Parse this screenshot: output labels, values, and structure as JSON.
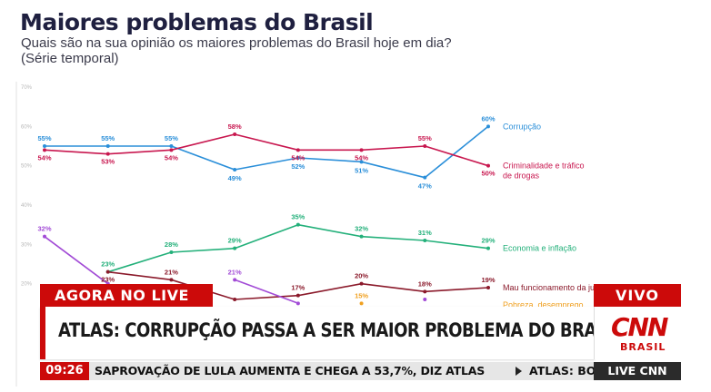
{
  "chart_data": {
    "type": "line",
    "title": "Maiores problemas do Brasil",
    "subtitle": "Quais são na sua opinião os maiores problemas do Brasil hoje em dia?",
    "subtitle2": "(Série temporal)",
    "y_ticks": [
      "70%",
      "60%",
      "50%",
      "40%",
      "30%",
      "20%"
    ],
    "ylim": [
      10,
      70
    ],
    "grid": false,
    "n_points": 8,
    "series": [
      {
        "name": "Corrupção",
        "color": "#2b8fd9",
        "values": [
          55,
          55,
          55,
          49,
          52,
          51,
          47,
          60
        ],
        "labels": [
          "55%",
          "55%",
          "55%",
          "49%",
          "52%",
          "51%",
          "47%",
          "60%"
        ]
      },
      {
        "name": "Criminalidade e tráfico de drogas",
        "name_lines": [
          "Criminalidade e tráfico",
          "de drogas"
        ],
        "color": "#c8174f",
        "values": [
          54,
          53,
          54,
          58,
          54,
          54,
          55,
          50
        ],
        "labels": [
          "54%",
          "53%",
          "54%",
          "58%",
          "54%",
          "54%",
          "55%",
          "50%"
        ]
      },
      {
        "name": "Economia e inflação",
        "color": "#23b07a",
        "values": [
          null,
          23,
          28,
          29,
          35,
          32,
          31,
          29
        ],
        "labels": [
          "",
          "23%",
          "28%",
          "29%",
          "35%",
          "32%",
          "31%",
          "29%"
        ]
      },
      {
        "name": "Mau funcionamento da ju",
        "color": "#8b1a2b",
        "values": [
          null,
          23,
          21,
          16,
          17,
          20,
          18,
          19
        ],
        "labels": [
          "",
          "23%",
          "21%",
          "",
          "17%",
          "20%",
          "18%",
          "19%"
        ]
      },
      {
        "name": "Pobreza, desemprego",
        "color": "#f0a020",
        "values": [
          null,
          null,
          null,
          null,
          null,
          15,
          null,
          null
        ],
        "labels": [
          "",
          "",
          "",
          "",
          "",
          "15%",
          "",
          ""
        ]
      },
      {
        "name": "",
        "color": "#a24bd6",
        "values": [
          32,
          20,
          null,
          21,
          15,
          null,
          16,
          null
        ],
        "labels": [
          "32%",
          "",
          "",
          "21%",
          "",
          "",
          "",
          ""
        ]
      }
    ]
  },
  "overlay": {
    "agora": "AGORA NO LIVE",
    "vivo": "VIVO",
    "headline": "ATLAS: CORRUPÇÃO PASSA A SER MAIOR PROBLEMA DO BRASIL",
    "logo_main": "CNN",
    "logo_sub": "BRASIL",
    "clock": "09:26",
    "ticker": "SAPROVAÇÃO DE LULA AUMENTA E CHEGA A 53,7%, DIZ ATLAS",
    "ticker2": "ATLAS: BO",
    "live": "LIVE CNN"
  }
}
